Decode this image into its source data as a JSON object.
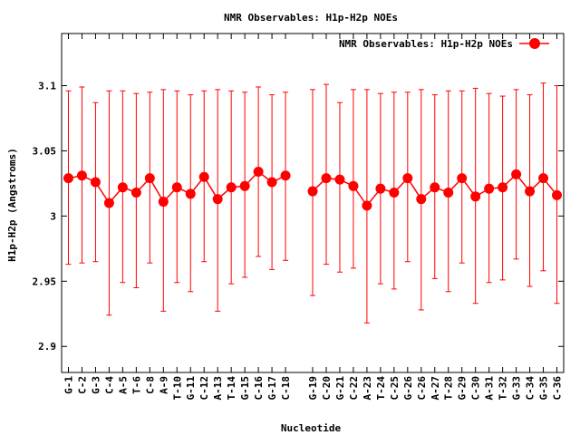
{
  "chart_data": {
    "type": "line",
    "title": "NMR Observables: H1p-H2p NOEs",
    "xlabel": "Nucleotide",
    "ylabel": "H1p-H2p (Angstroms)",
    "ylim": [
      2.88,
      3.14
    ],
    "yticks": [
      2.9,
      2.95,
      3,
      3.05,
      3.1
    ],
    "ytick_labels": [
      "2.9",
      "2.95",
      "3",
      "3.05",
      "3.1"
    ],
    "grid": false,
    "legend_position": "top-right",
    "categories": [
      "G-1",
      "C-2",
      "G-3",
      "C-4",
      "A-5",
      "T-6",
      "C-8",
      "A-9",
      "T-10",
      "G-11",
      "C-12",
      "A-13",
      "T-14",
      "G-15",
      "C-16",
      "G-17",
      "C-18",
      "G-19",
      "C-20",
      "G-21",
      "C-22",
      "A-23",
      "T-24",
      "C-25",
      "G-26",
      "C-26",
      "A-27",
      "T-28",
      "G-29",
      "C-30",
      "A-31",
      "T-32",
      "G-33",
      "C-34",
      "G-35",
      "C-36"
    ],
    "x_positions": [
      1,
      2,
      3,
      4,
      5,
      6,
      7,
      8,
      9,
      10,
      11,
      12,
      13,
      14,
      15,
      16,
      17,
      19,
      20,
      21,
      22,
      23,
      24,
      25,
      26,
      27,
      28,
      29,
      30,
      31,
      32,
      33,
      34,
      35,
      36,
      37
    ],
    "x_range": [
      0.5,
      37.5
    ],
    "series": [
      {
        "name": "NMR Observables: H1p-H2p NOEs",
        "color": "#ff0000",
        "values": [
          3.029,
          3.031,
          3.026,
          3.01,
          3.022,
          3.018,
          3.029,
          3.011,
          3.022,
          3.017,
          3.03,
          3.013,
          3.022,
          3.023,
          3.034,
          3.026,
          3.031,
          3.019,
          3.029,
          3.028,
          3.023,
          3.008,
          3.021,
          3.018,
          3.029,
          3.013,
          3.022,
          3.018,
          3.029,
          3.015,
          3.021,
          3.022,
          3.032,
          3.019,
          3.029,
          3.016
        ],
        "err_high": [
          3.096,
          3.099,
          3.087,
          3.096,
          3.096,
          3.094,
          3.095,
          3.097,
          3.096,
          3.093,
          3.096,
          3.097,
          3.096,
          3.095,
          3.099,
          3.093,
          3.095,
          3.097,
          3.101,
          3.087,
          3.097,
          3.097,
          3.094,
          3.095,
          3.095,
          3.097,
          3.093,
          3.096,
          3.096,
          3.098,
          3.094,
          3.092,
          3.097,
          3.093,
          3.102,
          3.1
        ],
        "err_low": [
          2.963,
          2.964,
          2.965,
          2.924,
          2.949,
          2.945,
          2.964,
          2.927,
          2.949,
          2.942,
          2.965,
          2.927,
          2.948,
          2.953,
          2.969,
          2.959,
          2.966,
          2.939,
          2.963,
          2.957,
          2.96,
          2.918,
          2.948,
          2.944,
          2.965,
          2.928,
          2.952,
          2.942,
          2.964,
          2.933,
          2.949,
          2.951,
          2.967,
          2.946,
          2.958,
          2.933
        ]
      }
    ]
  }
}
